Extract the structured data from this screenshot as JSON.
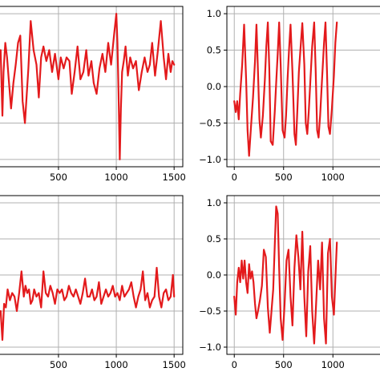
{
  "figure": {
    "layout": "2x2 grid of line plots (cropped)",
    "line_color": "#e31a1c",
    "grid_color": "#b0b0b0",
    "axes_color": "#000000"
  },
  "chart_data": [
    {
      "type": "line",
      "title": "",
      "xlabel": "",
      "ylabel": "",
      "xlim": [
        -75,
        1575
      ],
      "ylim": [
        -1.1,
        1.1
      ],
      "xticks": [
        500,
        1000,
        1500
      ],
      "yticks": [],
      "grid": true,
      "series": [
        {
          "color": "#e31a1c",
          "x": [
            0,
            15,
            25,
            40,
            55,
            70,
            90,
            110,
            130,
            150,
            170,
            190,
            210,
            240,
            260,
            285,
            310,
            330,
            350,
            370,
            395,
            420,
            445,
            470,
            500,
            520,
            545,
            570,
            595,
            615,
            640,
            665,
            690,
            715,
            740,
            760,
            785,
            805,
            830,
            855,
            880,
            905,
            930,
            955,
            980,
            1000,
            1010,
            1020,
            1030,
            1040,
            1050,
            1065,
            1080,
            1100,
            1120,
            1145,
            1170,
            1195,
            1220,
            1245,
            1270,
            1290,
            1310,
            1335,
            1360,
            1385,
            1410,
            1430,
            1450,
            1470,
            1485,
            1500
          ],
          "y": [
            0.5,
            -0.4,
            0.2,
            0.6,
            0.4,
            0.1,
            -0.3,
            0.05,
            0.3,
            0.6,
            0.7,
            -0.2,
            -0.5,
            0.25,
            0.9,
            0.5,
            0.3,
            -0.15,
            0.4,
            0.55,
            0.35,
            0.5,
            0.2,
            0.45,
            0.1,
            0.4,
            0.25,
            0.4,
            0.35,
            -0.1,
            0.2,
            0.55,
            0.1,
            0.2,
            0.5,
            0.15,
            0.35,
            0.05,
            -0.1,
            0.25,
            0.45,
            0.2,
            0.6,
            0.3,
            0.7,
            1.0,
            0.6,
            -0.1,
            -1.0,
            -0.3,
            0.2,
            0.35,
            0.55,
            0.15,
            0.4,
            0.25,
            0.35,
            -0.05,
            0.2,
            0.4,
            0.2,
            0.3,
            0.6,
            0.15,
            0.5,
            0.9,
            0.4,
            0.1,
            0.45,
            0.2,
            0.35,
            0.3
          ]
        }
      ]
    },
    {
      "type": "line",
      "title": "",
      "xlabel": "",
      "ylabel": "",
      "xlim": [
        -75,
        1575
      ],
      "ylim": [
        -1.1,
        1.1
      ],
      "xticks": [
        0,
        500,
        1000
      ],
      "yticks": [
        1.0,
        0.5,
        0.0,
        -0.5,
        -1.0
      ],
      "ytick_labels": [
        "1.0",
        "0.5",
        "0.0",
        "−0.5",
        "−1.0"
      ],
      "grid": true,
      "series": [
        {
          "color": "#e31a1c",
          "x": [
            0,
            15,
            30,
            45,
            60,
            80,
            100,
            120,
            135,
            150,
            170,
            190,
            210,
            225,
            240,
            255,
            270,
            290,
            310,
            325,
            340,
            355,
            370,
            390,
            410,
            425,
            440,
            455,
            470,
            490,
            510,
            525,
            540,
            555,
            570,
            590,
            610,
            625,
            640,
            655,
            670,
            690,
            710,
            725,
            740,
            755,
            770,
            790,
            810,
            825,
            840,
            855,
            870,
            890,
            910,
            925,
            940,
            955,
            970,
            990,
            1010,
            1025,
            1040
          ],
          "y": [
            -0.2,
            -0.35,
            -0.2,
            -0.45,
            -0.1,
            0.3,
            0.85,
            0.1,
            -0.6,
            -0.95,
            -0.55,
            -0.15,
            0.35,
            0.85,
            0.2,
            -0.45,
            -0.7,
            -0.4,
            0.1,
            0.55,
            0.88,
            0.25,
            -0.75,
            -0.8,
            -0.35,
            0.05,
            0.45,
            0.88,
            0.3,
            -0.6,
            -0.7,
            -0.4,
            0.1,
            0.5,
            0.85,
            0.2,
            -0.65,
            -0.8,
            -0.3,
            0.2,
            0.5,
            0.87,
            0.3,
            -0.5,
            -0.65,
            -0.35,
            0.05,
            0.55,
            0.88,
            0.25,
            -0.6,
            -0.7,
            -0.4,
            0.1,
            0.6,
            0.88,
            0.2,
            -0.55,
            -0.65,
            -0.3,
            0.15,
            0.6,
            0.88
          ]
        }
      ]
    },
    {
      "type": "line",
      "title": "",
      "xlabel": "",
      "ylabel": "",
      "xlim": [
        -75,
        1575
      ],
      "ylim": [
        -1.1,
        1.1
      ],
      "xticks": [
        500,
        1000,
        1500
      ],
      "yticks": [],
      "grid": true,
      "series": [
        {
          "color": "#e31a1c",
          "x": [
            0,
            15,
            30,
            45,
            60,
            80,
            100,
            120,
            140,
            160,
            180,
            200,
            215,
            230,
            245,
            260,
            275,
            290,
            310,
            330,
            350,
            370,
            390,
            410,
            430,
            450,
            470,
            490,
            510,
            530,
            550,
            570,
            590,
            610,
            630,
            650,
            670,
            690,
            710,
            730,
            750,
            770,
            790,
            810,
            830,
            850,
            870,
            890,
            910,
            930,
            950,
            970,
            990,
            1010,
            1030,
            1050,
            1070,
            1090,
            1110,
            1130,
            1150,
            1170,
            1190,
            1210,
            1230,
            1250,
            1270,
            1290,
            1310,
            1330,
            1350,
            1370,
            1390,
            1410,
            1430,
            1450,
            1470,
            1490,
            1500
          ],
          "y": [
            -0.5,
            -0.9,
            -0.4,
            -0.45,
            -0.2,
            -0.35,
            -0.25,
            -0.3,
            -0.5,
            -0.25,
            0.05,
            -0.3,
            -0.15,
            -0.25,
            -0.2,
            -0.4,
            -0.35,
            -0.2,
            -0.3,
            -0.25,
            -0.45,
            0.05,
            -0.25,
            -0.3,
            -0.15,
            -0.25,
            -0.4,
            -0.2,
            -0.25,
            -0.2,
            -0.35,
            -0.3,
            -0.15,
            -0.25,
            -0.3,
            -0.2,
            -0.3,
            -0.4,
            -0.25,
            -0.05,
            -0.3,
            -0.3,
            -0.2,
            -0.35,
            -0.3,
            -0.1,
            -0.4,
            -0.3,
            -0.2,
            -0.3,
            -0.25,
            -0.15,
            -0.3,
            -0.25,
            -0.35,
            -0.15,
            -0.3,
            -0.25,
            -0.2,
            -0.1,
            -0.3,
            -0.45,
            -0.3,
            -0.2,
            0.05,
            -0.35,
            -0.25,
            -0.45,
            -0.35,
            -0.3,
            0.1,
            -0.3,
            -0.45,
            -0.25,
            -0.2,
            -0.35,
            -0.3,
            0.0,
            -0.3
          ]
        }
      ]
    },
    {
      "type": "line",
      "title": "",
      "xlabel": "",
      "ylabel": "",
      "xlim": [
        -75,
        1575
      ],
      "ylim": [
        -1.1,
        1.1
      ],
      "xticks": [
        0,
        500,
        1000
      ],
      "yticks": [
        1.0,
        0.5,
        0.0,
        -0.5,
        -1.0
      ],
      "ytick_labels": [
        "1.0",
        "0.5",
        "0.0",
        "−0.5",
        "−1.0"
      ],
      "grid": true,
      "series": [
        {
          "color": "#e31a1c",
          "x": [
            0,
            15,
            30,
            45,
            60,
            75,
            90,
            105,
            120,
            135,
            150,
            165,
            180,
            195,
            210,
            225,
            240,
            260,
            280,
            300,
            320,
            340,
            360,
            380,
            395,
            410,
            425,
            440,
            455,
            470,
            490,
            510,
            530,
            550,
            570,
            590,
            610,
            630,
            650,
            670,
            690,
            710,
            730,
            750,
            770,
            790,
            810,
            830,
            850,
            870,
            890,
            910,
            930,
            950,
            970,
            990,
            1010,
            1030,
            1040
          ],
          "y": [
            -0.3,
            -0.55,
            -0.1,
            0.1,
            -0.1,
            0.2,
            -0.05,
            0.2,
            -0.1,
            -0.25,
            0.15,
            -0.05,
            0.05,
            -0.1,
            -0.4,
            -0.6,
            -0.5,
            -0.35,
            -0.15,
            0.35,
            0.25,
            -0.45,
            -0.8,
            -0.45,
            -0.2,
            0.4,
            0.95,
            0.85,
            0.1,
            -0.6,
            -0.9,
            -0.4,
            0.2,
            0.35,
            -0.3,
            -0.7,
            0.1,
            0.55,
            0.25,
            -0.2,
            0.6,
            -0.3,
            -0.85,
            0.05,
            0.4,
            -0.5,
            -0.95,
            -0.4,
            0.2,
            -0.2,
            0.45,
            -0.6,
            -0.95,
            0.3,
            0.5,
            -0.3,
            -0.55,
            0.1,
            0.45
          ]
        }
      ]
    }
  ]
}
